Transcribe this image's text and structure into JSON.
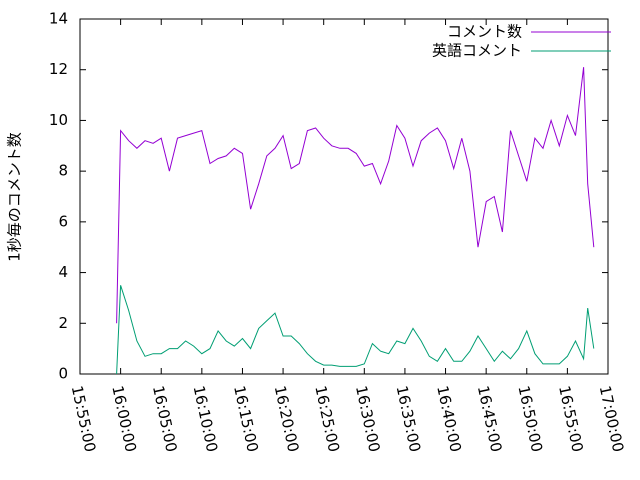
{
  "chart_data": {
    "type": "line",
    "y_label": "1秒毎のコメント数",
    "x": [
      "15:59:30",
      "16:00:00",
      "16:01:00",
      "16:02:00",
      "16:03:00",
      "16:04:00",
      "16:05:00",
      "16:06:00",
      "16:07:00",
      "16:08:00",
      "16:09:00",
      "16:10:00",
      "16:11:00",
      "16:12:00",
      "16:13:00",
      "16:14:00",
      "16:15:00",
      "16:16:00",
      "16:17:00",
      "16:18:00",
      "16:19:00",
      "16:20:00",
      "16:21:00",
      "16:22:00",
      "16:23:00",
      "16:24:00",
      "16:25:00",
      "16:26:00",
      "16:27:00",
      "16:28:00",
      "16:29:00",
      "16:30:00",
      "16:31:00",
      "16:32:00",
      "16:33:00",
      "16:34:00",
      "16:35:00",
      "16:36:00",
      "16:37:00",
      "16:38:00",
      "16:39:00",
      "16:40:00",
      "16:41:00",
      "16:42:00",
      "16:43:00",
      "16:44:00",
      "16:45:00",
      "16:46:00",
      "16:47:00",
      "16:48:00",
      "16:49:00",
      "16:50:00",
      "16:51:00",
      "16:52:00",
      "16:53:00",
      "16:54:00",
      "16:55:00",
      "16:56:00",
      "16:57:00",
      "16:57:30",
      "16:58:15"
    ],
    "series": [
      {
        "name": "コメント数",
        "color": "#9400d3",
        "values": [
          2.0,
          9.6,
          9.2,
          8.9,
          9.2,
          9.1,
          9.3,
          8.0,
          9.3,
          9.4,
          9.5,
          9.6,
          8.3,
          8.5,
          8.6,
          8.9,
          8.7,
          6.5,
          7.5,
          8.6,
          8.9,
          9.4,
          8.1,
          8.3,
          9.6,
          9.7,
          9.3,
          9.0,
          8.9,
          8.9,
          8.7,
          8.2,
          8.3,
          7.5,
          8.4,
          9.8,
          9.3,
          8.2,
          9.2,
          9.5,
          9.7,
          9.2,
          8.1,
          9.3,
          8.0,
          5.0,
          6.8,
          7.0,
          5.6,
          9.6,
          8.6,
          7.6,
          9.3,
          8.9,
          10.0,
          9.0,
          10.2,
          9.4,
          12.1,
          7.5,
          5.0
        ]
      },
      {
        "name": "英語コメント",
        "color": "#009e73",
        "values": [
          0.0,
          3.5,
          2.5,
          1.3,
          0.7,
          0.8,
          0.8,
          1.0,
          1.0,
          1.3,
          1.1,
          0.8,
          1.0,
          1.7,
          1.3,
          1.1,
          1.4,
          1.0,
          1.8,
          2.1,
          2.4,
          1.5,
          1.5,
          1.2,
          0.8,
          0.5,
          0.35,
          0.35,
          0.3,
          0.3,
          0.3,
          0.4,
          1.2,
          0.9,
          0.8,
          1.3,
          1.2,
          1.8,
          1.3,
          0.7,
          0.5,
          1.0,
          0.5,
          0.5,
          0.9,
          1.5,
          1.0,
          0.5,
          0.9,
          0.6,
          1.0,
          1.7,
          0.8,
          0.4,
          0.4,
          0.4,
          0.7,
          1.3,
          0.6,
          2.6,
          1.0
        ]
      }
    ],
    "xlim": [
      "15:55:00",
      "17:00:00"
    ],
    "xticks": [
      "15:55:00",
      "16:00:00",
      "16:05:00",
      "16:10:00",
      "16:15:00",
      "16:20:00",
      "16:25:00",
      "16:30:00",
      "16:35:00",
      "16:40:00",
      "16:45:00",
      "16:50:00",
      "16:55:00",
      "17:00:00"
    ],
    "ylim": [
      0,
      14
    ],
    "yticks": [
      0,
      2,
      4,
      6,
      8,
      10,
      12,
      14
    ],
    "legend": "top-right"
  }
}
